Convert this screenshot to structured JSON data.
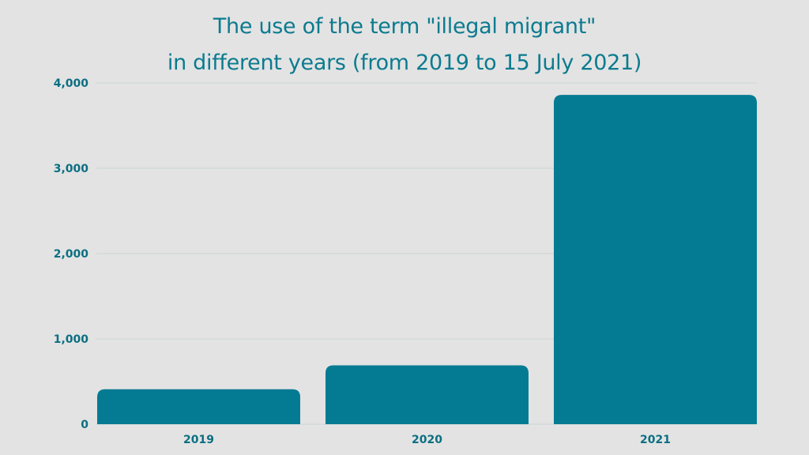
{
  "chart_data": {
    "type": "bar",
    "title_lines": [
      "The use of the term \"illegal migrant\"",
      "in different years (from 2019 to 15 July 2021)"
    ],
    "categories": [
      "2019",
      "2020",
      "2021"
    ],
    "values": [
      410,
      690,
      3860
    ],
    "ylim": [
      0,
      4000
    ],
    "yticks": [
      0,
      1000,
      2000,
      3000,
      4000
    ],
    "ytick_labels": [
      "0",
      "1,000",
      "2,000",
      "3,000",
      "4,000"
    ],
    "xlabel": "",
    "ylabel": "",
    "grid": true,
    "legend": "none",
    "bar_color": "#057b93",
    "grid_color": "#c9d4d6",
    "text_color": "#0b7b8f"
  }
}
